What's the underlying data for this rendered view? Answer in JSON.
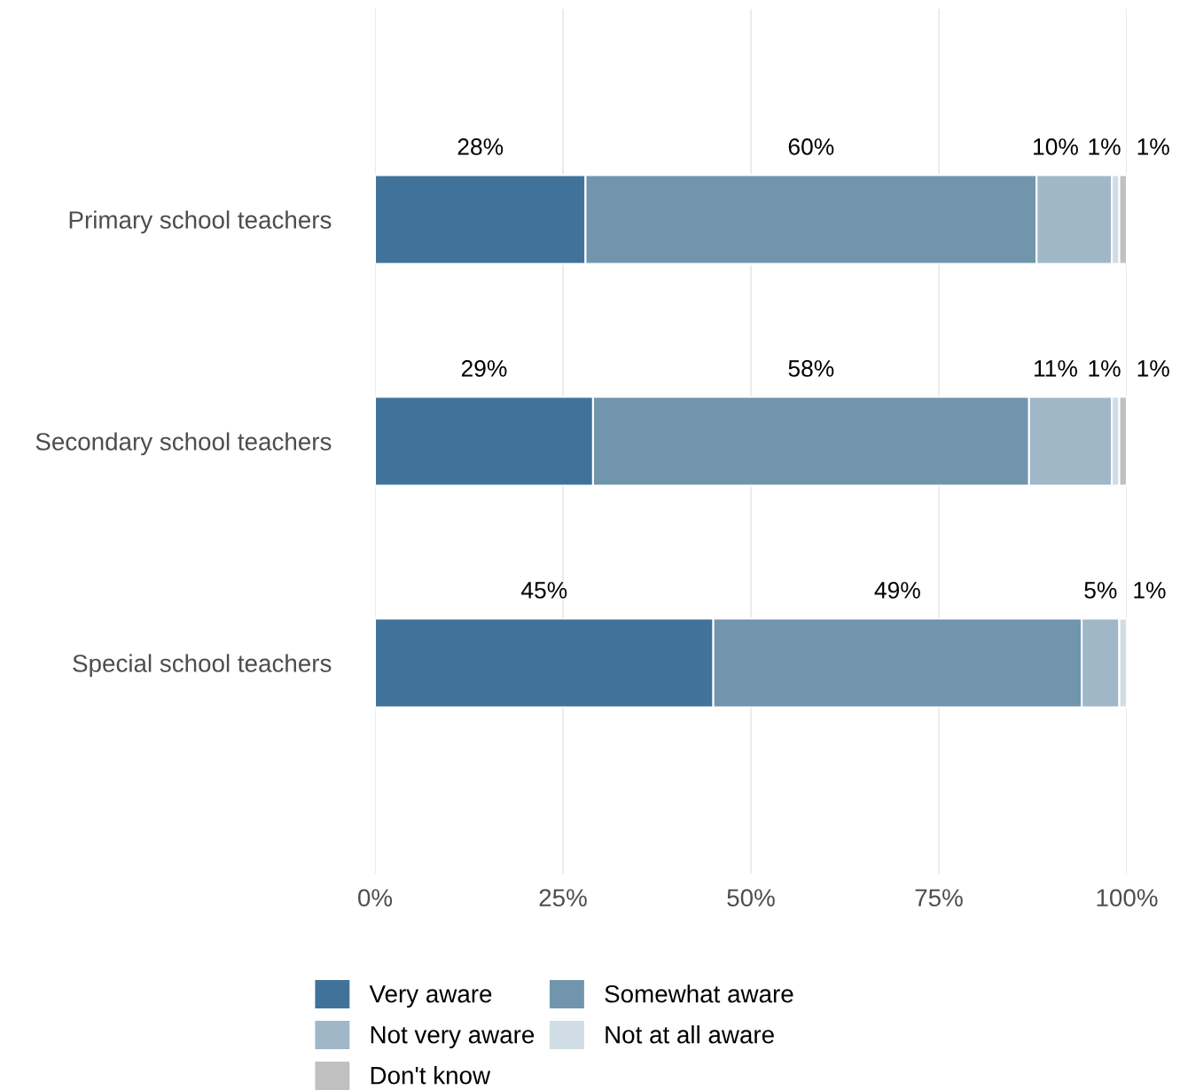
{
  "chart_data": {
    "type": "bar",
    "orientation": "horizontal",
    "stacked": true,
    "categories": [
      "Primary school teachers",
      "Secondary school teachers",
      "Special school teachers"
    ],
    "series": [
      {
        "name": "Very aware",
        "color": "#41739a",
        "values": [
          28,
          29,
          45
        ]
      },
      {
        "name": "Somewhat aware",
        "color": "#7295ae",
        "values": [
          60,
          58,
          49
        ]
      },
      {
        "name": "Not very aware",
        "color": "#a0b7c8",
        "values": [
          10,
          11,
          5
        ]
      },
      {
        "name": "Not at all aware",
        "color": "#d0dde4",
        "values": [
          1,
          1,
          1
        ]
      },
      {
        "name": "Don't know",
        "color": "#c0c0c0",
        "values": [
          1,
          1,
          null
        ]
      }
    ],
    "xlim": [
      0,
      100
    ],
    "xticks": [
      {
        "value": 0,
        "label": "0%"
      },
      {
        "value": 25,
        "label": "25%"
      },
      {
        "value": 50,
        "label": "50%"
      },
      {
        "value": 75,
        "label": "75%"
      },
      {
        "value": 100,
        "label": "100%"
      }
    ],
    "value_labels": [
      [
        "28%",
        "29%",
        "45%"
      ],
      [
        "60%",
        "58%",
        "49%"
      ],
      [
        "10%",
        "11%",
        "5%"
      ],
      [
        "1%",
        "1%",
        "1%"
      ],
      [
        "1%",
        "1%",
        null
      ]
    ],
    "grid": "x",
    "legend": "bottom"
  }
}
